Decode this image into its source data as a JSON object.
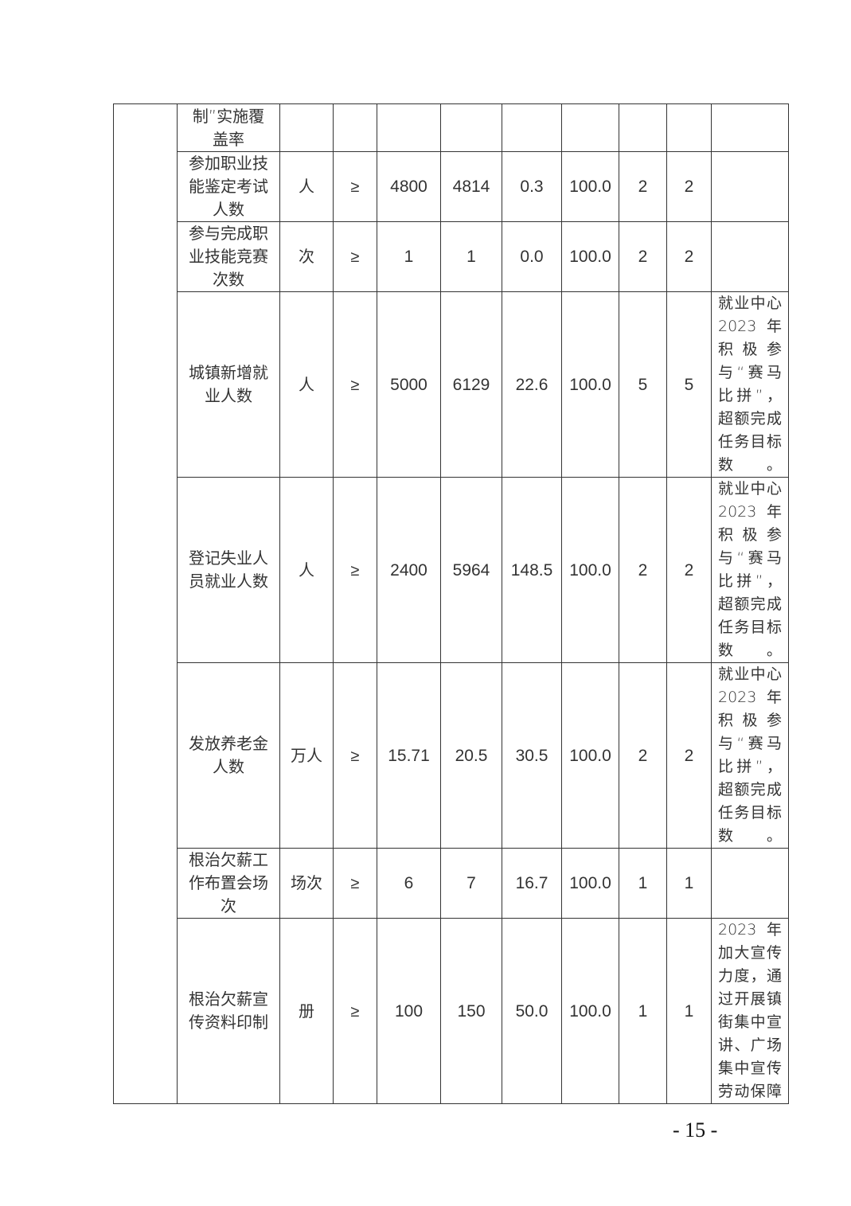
{
  "table": {
    "rows": [
      {
        "indicator": "制”实施覆盖率",
        "unit": "",
        "op": "",
        "target": "",
        "actual": "",
        "deviation": "",
        "rate": "",
        "weight": "",
        "score": "",
        "remark": ""
      },
      {
        "indicator": "参加职业技能鉴定考试人数",
        "unit": "人",
        "op": "≥",
        "target": "4800",
        "actual": "4814",
        "deviation": "0.3",
        "rate": "100.0",
        "weight": "2",
        "score": "2",
        "remark": ""
      },
      {
        "indicator": "参与完成职业技能竞赛次数",
        "unit": "次",
        "op": "≥",
        "target": "1",
        "actual": "1",
        "deviation": "0.0",
        "rate": "100.0",
        "weight": "2",
        "score": "2",
        "remark": ""
      },
      {
        "indicator": "城镇新增就业人数",
        "unit": "人",
        "op": "≥",
        "target": "5000",
        "actual": "6129",
        "deviation": "22.6",
        "rate": "100.0",
        "weight": "5",
        "score": "5",
        "remark": "就业中心2023 年积极参与“赛马比拼”，超额完成任务目标数。"
      },
      {
        "indicator": "登记失业人员就业人数",
        "unit": "人",
        "op": "≥",
        "target": "2400",
        "actual": "5964",
        "deviation": "148.5",
        "rate": "100.0",
        "weight": "2",
        "score": "2",
        "remark": "就业中心2023 年积极参与“赛马比拼”，超额完成任务目标数。"
      },
      {
        "indicator": "发放养老金人数",
        "unit": "万人",
        "op": "≥",
        "target": "15.71",
        "actual": "20.5",
        "deviation": "30.5",
        "rate": "100.0",
        "weight": "2",
        "score": "2",
        "remark": "就业中心2023 年积极参与“赛马比拼”，超额完成任务目标数。"
      },
      {
        "indicator": "根治欠薪工作布置会场次",
        "unit": "场次",
        "op": "≥",
        "target": "6",
        "actual": "7",
        "deviation": "16.7",
        "rate": "100.0",
        "weight": "1",
        "score": "1",
        "remark": ""
      },
      {
        "indicator": "根治欠薪宣传资料印制",
        "unit": "册",
        "op": "≥",
        "target": "100",
        "actual": "150",
        "deviation": "50.0",
        "rate": "100.0",
        "weight": "1",
        "score": "1",
        "remark": "2023 年加大宣传力度，通过开展镇街集中宣讲、广场集中宣传劳动保障"
      }
    ]
  },
  "page_number": "- 15 -"
}
